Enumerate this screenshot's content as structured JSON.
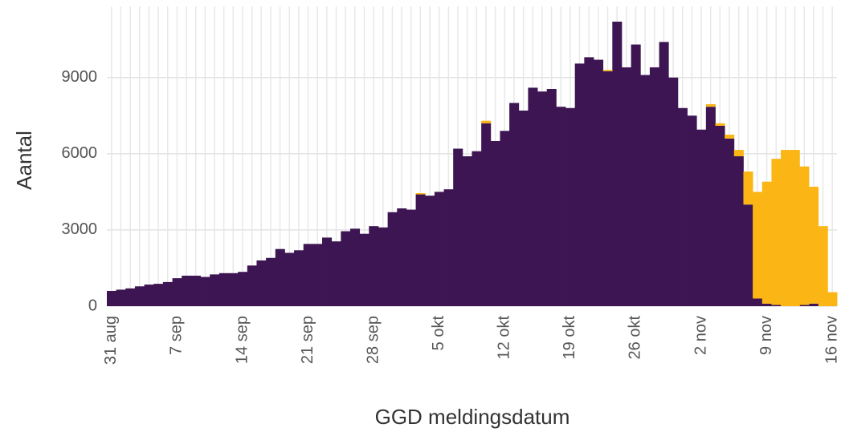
{
  "chart_data": {
    "type": "stacked-bar",
    "x_label": "GGD meldingsdatum",
    "y_label": "Aantal",
    "categories": [
      "31 aug",
      null,
      null,
      null,
      null,
      null,
      null,
      "7 sep",
      null,
      null,
      null,
      null,
      null,
      null,
      "14 sep",
      null,
      null,
      null,
      null,
      null,
      null,
      "21 sep",
      null,
      null,
      null,
      null,
      null,
      null,
      "28 sep",
      null,
      null,
      null,
      null,
      null,
      null,
      "5 okt",
      null,
      null,
      null,
      null,
      null,
      null,
      "12 okt",
      null,
      null,
      null,
      null,
      null,
      null,
      "19 okt",
      null,
      null,
      null,
      null,
      null,
      null,
      "26 okt",
      null,
      null,
      null,
      null,
      null,
      null,
      "2 nov",
      null,
      null,
      null,
      null,
      null,
      null,
      "9 nov",
      null,
      null,
      null,
      null,
      null,
      null,
      "16 nov"
    ],
    "series": [
      {
        "color": "#3d1552",
        "values": [
          600,
          650,
          700,
          780,
          850,
          880,
          950,
          1100,
          1200,
          1200,
          1150,
          1250,
          1300,
          1300,
          1350,
          1600,
          1800,
          1900,
          2250,
          2100,
          2200,
          2450,
          2450,
          2700,
          2550,
          2950,
          3050,
          2850,
          3150,
          3100,
          3700,
          3850,
          3800,
          4400,
          4350,
          4500,
          4600,
          6200,
          5900,
          6100,
          7200,
          6500,
          6900,
          8000,
          7700,
          8600,
          8450,
          8550,
          7850,
          7800,
          9550,
          9800,
          9700,
          9250,
          11200,
          9400,
          10300,
          9100,
          9400,
          10400,
          9000,
          7800,
          7500,
          6950,
          7850,
          7100,
          6600,
          5900,
          4000,
          300,
          100,
          50,
          0,
          0,
          50,
          100,
          0,
          0
        ]
      },
      {
        "color": "#fbb514",
        "values": [
          0,
          0,
          0,
          0,
          0,
          0,
          0,
          0,
          0,
          0,
          0,
          0,
          0,
          0,
          0,
          0,
          0,
          0,
          0,
          0,
          0,
          0,
          0,
          0,
          0,
          0,
          0,
          0,
          0,
          0,
          0,
          0,
          0,
          50,
          0,
          0,
          0,
          0,
          0,
          0,
          100,
          0,
          0,
          0,
          0,
          0,
          0,
          0,
          0,
          0,
          0,
          0,
          0,
          50,
          0,
          0,
          0,
          0,
          0,
          0,
          0,
          0,
          0,
          0,
          100,
          100,
          150,
          250,
          1300,
          4200,
          4800,
          5750,
          6150,
          6150,
          5450,
          4600,
          3150,
          550
        ]
      }
    ],
    "ylim": [
      0,
      11800
    ],
    "yticks": [
      0,
      3000,
      6000,
      9000
    ],
    "grid": true
  }
}
